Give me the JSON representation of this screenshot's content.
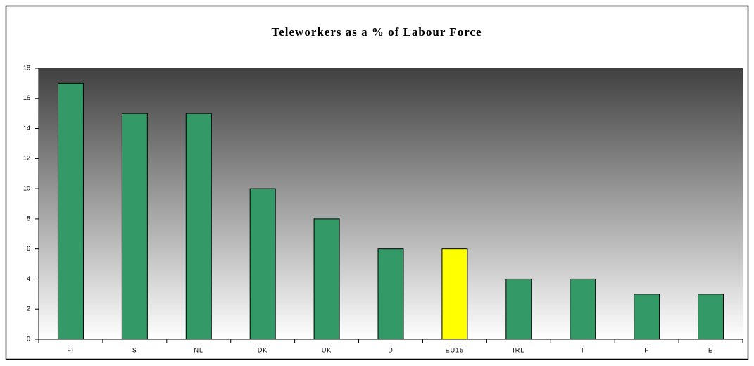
{
  "chart_data": {
    "type": "bar",
    "title": "Teleworkers as a % of Labour Force",
    "categories": [
      "FI",
      "S",
      "NL",
      "DK",
      "UK",
      "D",
      "EU15",
      "IRL",
      "I",
      "F",
      "E"
    ],
    "values": [
      17,
      15,
      15,
      10,
      8,
      6,
      6,
      4,
      4,
      3,
      3
    ],
    "colors": [
      "#339966",
      "#339966",
      "#339966",
      "#339966",
      "#339966",
      "#339966",
      "#ffff00",
      "#339966",
      "#339966",
      "#339966",
      "#339966"
    ],
    "ylim": [
      0,
      18
    ],
    "yticks": [
      0,
      2,
      4,
      6,
      8,
      10,
      12,
      14,
      16,
      18
    ],
    "grid": false
  }
}
